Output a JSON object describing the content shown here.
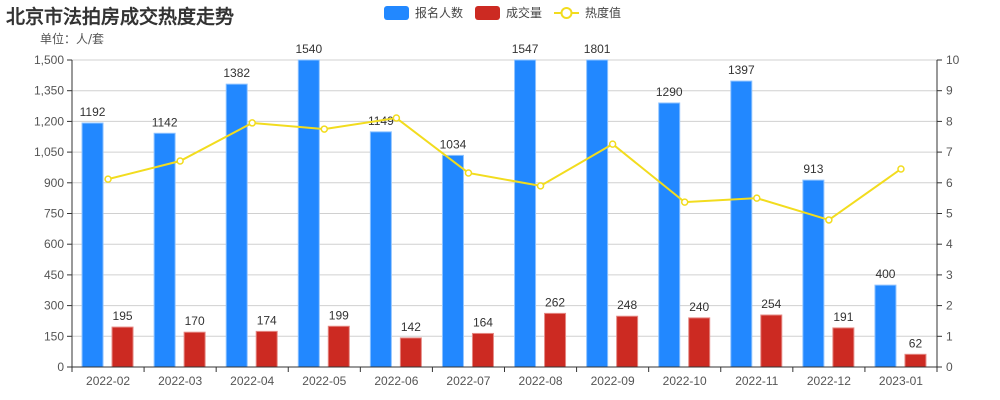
{
  "title": "北京市法拍房成交热度走势",
  "unit_label": "单位：人/套",
  "legend": [
    {
      "name": "报名人数",
      "type": "bar",
      "color": "#2288ff"
    },
    {
      "name": "成交量",
      "type": "bar",
      "color": "#cc2a22"
    },
    {
      "name": "热度值",
      "type": "line",
      "color": "#f2dc1e"
    }
  ],
  "colors": {
    "applicants": "#2288ff",
    "deals": "#cc2a22",
    "heat": "#f2dc1e",
    "grid": "#d0d0d0",
    "axis": "#333333"
  },
  "chart_data": {
    "type": "bar",
    "title": "北京市法拍房成交热度走势",
    "ylabel": "单位：人/套",
    "categories": [
      "2022-02",
      "2022-03",
      "2022-04",
      "2022-05",
      "2022-06",
      "2022-07",
      "2022-08",
      "2022-09",
      "2022-10",
      "2022-11",
      "2022-12",
      "2023-01"
    ],
    "series": [
      {
        "name": "报名人数",
        "type": "bar",
        "axis": "left",
        "values": [
          1192,
          1142,
          1382,
          1540,
          1149,
          1034,
          1547,
          1801,
          1290,
          1397,
          913,
          400
        ]
      },
      {
        "name": "成交量",
        "type": "bar",
        "axis": "left",
        "values": [
          195,
          170,
          174,
          199,
          142,
          164,
          262,
          248,
          240,
          254,
          191,
          62
        ]
      },
      {
        "name": "热度值",
        "type": "line",
        "axis": "right",
        "values": [
          6.12,
          6.71,
          7.95,
          7.75,
          8.11,
          6.32,
          5.9,
          7.26,
          5.37,
          5.5,
          4.79,
          6.45
        ]
      }
    ],
    "left_axis": {
      "ylim": [
        0,
        1500
      ],
      "ticks": [
        "0",
        "150",
        "300",
        "450",
        "600",
        "750",
        "900",
        "1,050",
        "1,200",
        "1,350",
        "1,500"
      ]
    },
    "right_axis": {
      "ylim": [
        0,
        10
      ],
      "ticks": [
        "0",
        "1",
        "2",
        "3",
        "4",
        "5",
        "6",
        "7",
        "8",
        "9",
        "10"
      ]
    },
    "grid": true,
    "legend_position": "top"
  }
}
